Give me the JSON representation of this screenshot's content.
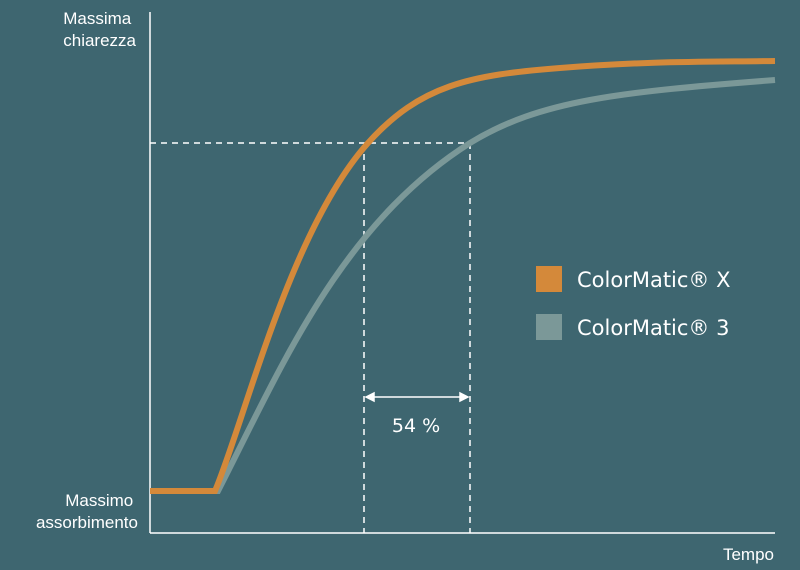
{
  "axes": {
    "y_top": [
      "Massima",
      "chiarezza"
    ],
    "y_bottom": [
      "Massimo",
      "assorbimento"
    ],
    "x": "Tempo"
  },
  "annotation": "54 %",
  "legend": [
    {
      "label": "ColorMatic® X",
      "color": "#d4893a"
    },
    {
      "label": "ColorMatic® 3",
      "color": "#7b9898"
    }
  ]
}
